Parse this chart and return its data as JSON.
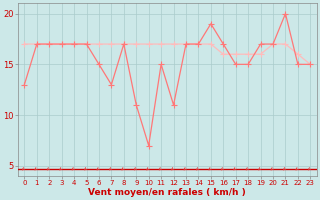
{
  "xlabel": "Vent moyen/en rafales ( km/h )",
  "background_color": "#cce8e8",
  "grid_color": "#aacccc",
  "line_mean_color": "#ff7777",
  "line_gust_color": "#ffbbbb",
  "arrow_color": "#dd3333",
  "redline_color": "#cc0000",
  "x": [
    0,
    1,
    2,
    3,
    4,
    5,
    6,
    7,
    8,
    9,
    10,
    11,
    12,
    13,
    14,
    15,
    16,
    17,
    18,
    19,
    20,
    21,
    22,
    23
  ],
  "y_mean": [
    13,
    17,
    17,
    17,
    17,
    17,
    15,
    13,
    17,
    11,
    7,
    15,
    11,
    17,
    17,
    19,
    17,
    15,
    15,
    17,
    17,
    20,
    15,
    15
  ],
  "y_gust": [
    17,
    17,
    17,
    17,
    17,
    17,
    17,
    17,
    17,
    17,
    17,
    17,
    17,
    17,
    17,
    17,
    16,
    16,
    16,
    16,
    17,
    17,
    16,
    15
  ],
  "ylim_min": 4,
  "ylim_max": 21,
  "yticks": [
    5,
    10,
    15,
    20
  ],
  "xtick_fontsize": 5,
  "ytick_fontsize": 6,
  "xlabel_fontsize": 6.5,
  "tick_color": "#cc0000",
  "xlabel_color": "#cc0000"
}
